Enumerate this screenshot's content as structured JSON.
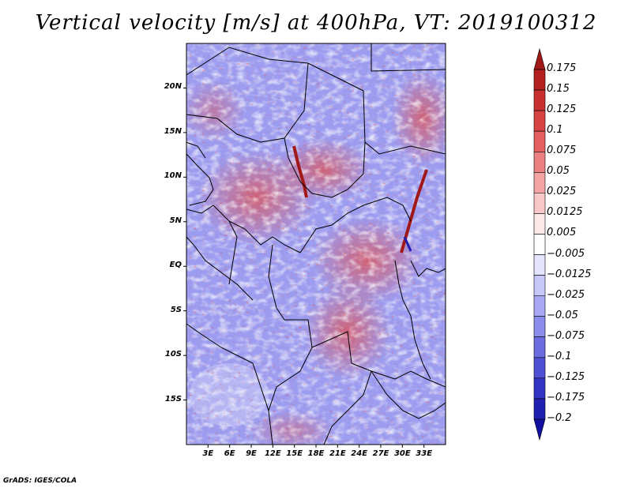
{
  "title": "Vertical velocity [m/s] at 400hPa, VT: 2019100312",
  "footer": "GrADS: IGES/COLA",
  "map": {
    "lon_range": [
      0,
      36
    ],
    "lat_range": [
      -20,
      25
    ],
    "lat_ticks": [
      "20N",
      "15N",
      "10N",
      "5N",
      "EQ",
      "5S",
      "10S",
      "15S"
    ],
    "lat_tick_values": [
      20,
      15,
      10,
      5,
      0,
      -5,
      -10,
      -15
    ],
    "lon_ticks": [
      "3E",
      "6E",
      "9E",
      "12E",
      "15E",
      "18E",
      "21E",
      "24E",
      "27E",
      "30E",
      "33E"
    ],
    "lon_tick_values": [
      3,
      6,
      9,
      12,
      15,
      18,
      21,
      24,
      27,
      30,
      33
    ]
  },
  "colorbar": {
    "labels": [
      "0.175",
      "0.15",
      "0.125",
      "0.1",
      "0.075",
      "0.05",
      "0.025",
      "0.0125",
      "0.005",
      "−0.005",
      "−0.0125",
      "−0.025",
      "−0.05",
      "−0.075",
      "−0.1",
      "−0.125",
      "−0.175",
      "−0.2"
    ],
    "colors": [
      "#a01818",
      "#b42020",
      "#c83030",
      "#d84444",
      "#e46060",
      "#ec8080",
      "#f4a4a4",
      "#f8c8c8",
      "#fce8e8",
      "#ffffff",
      "#e4e4fc",
      "#c8c8f8",
      "#a8a8f4",
      "#8c8cec",
      "#6c6ce0",
      "#5050d4",
      "#3434c4",
      "#2020b0",
      "#1010a0"
    ]
  }
}
